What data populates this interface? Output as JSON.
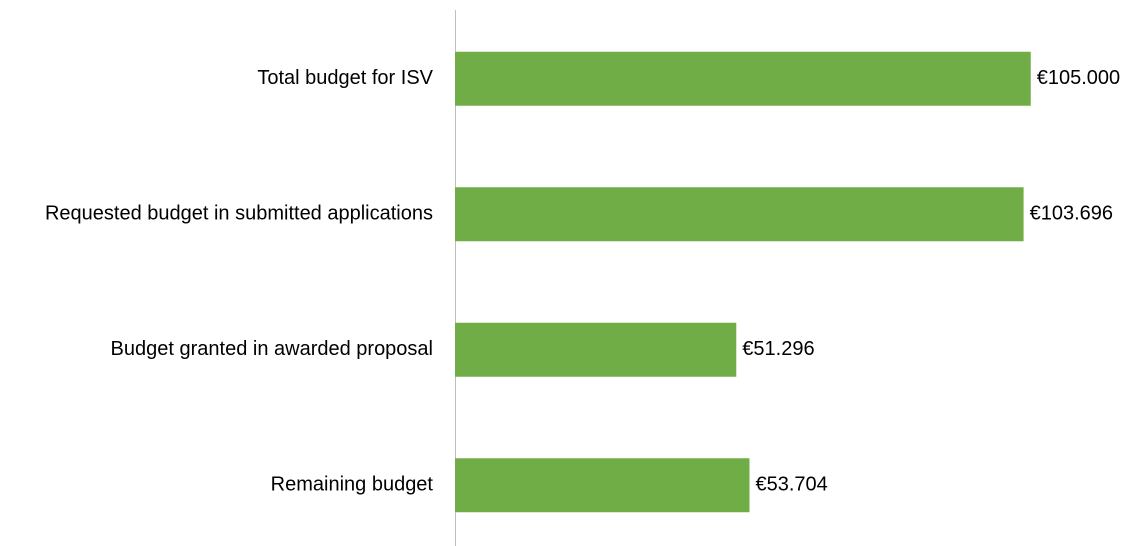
{
  "chart_data": {
    "type": "bar",
    "orientation": "horizontal",
    "categories": [
      "Total budget for ISV",
      "Requested budget in submitted applications",
      "Budget granted in awarded proposal",
      "Remaining budget"
    ],
    "values": [
      105000,
      103696,
      51296,
      53704
    ],
    "value_labels": [
      "€105.000",
      "€103.696",
      "€51.296",
      "€53.704"
    ],
    "color": "#70ad47",
    "xlim": [
      0,
      120000
    ]
  }
}
